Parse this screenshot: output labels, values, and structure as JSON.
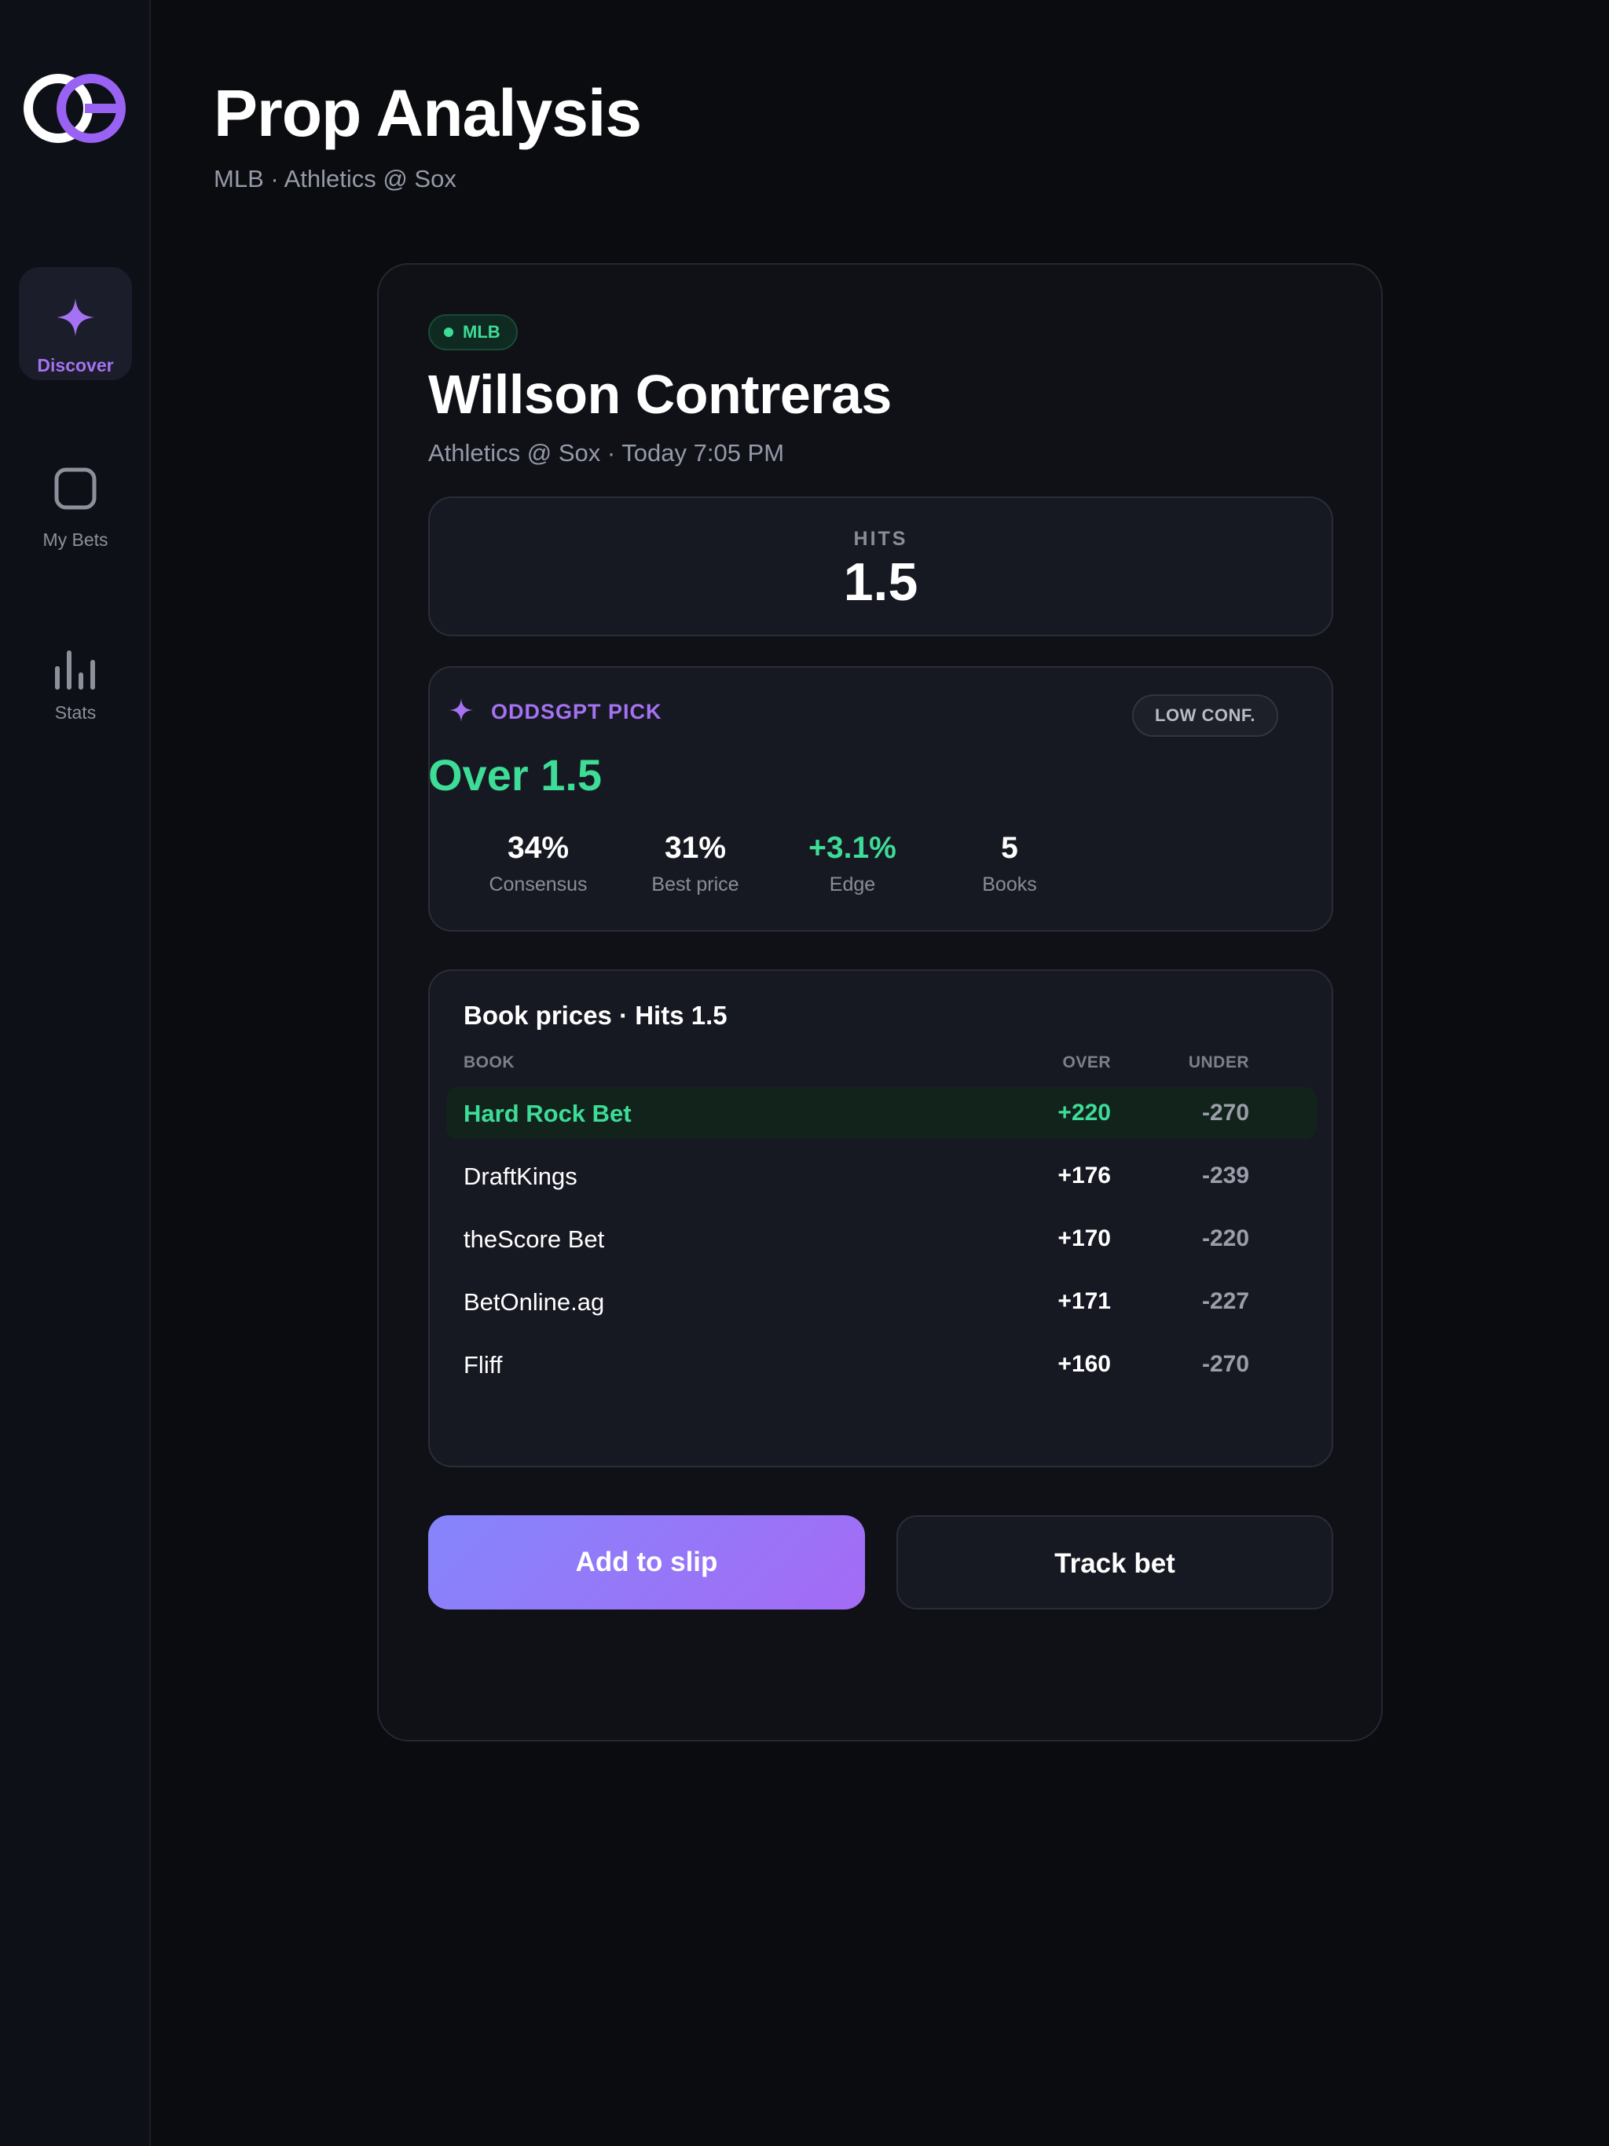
{
  "sidebar": {
    "items": [
      {
        "label": "Discover",
        "icon": "sparkle-icon",
        "active": true
      },
      {
        "label": "My Bets",
        "icon": "square-icon",
        "active": false
      },
      {
        "label": "Stats",
        "icon": "bar-chart-icon",
        "active": false
      }
    ]
  },
  "header": {
    "title": "Prop Analysis",
    "subtitle": "MLB · Athletics @ Sox"
  },
  "card": {
    "sport_badge": "MLB",
    "player": "Willson Contreras",
    "matchup": "Athletics @ Sox · Today 7:05 PM",
    "line": {
      "label": "HITS",
      "value": "1.5"
    },
    "pick": {
      "label": "ODDSGPT PICK",
      "confidence": "LOW CONF.",
      "value": "Over 1.5",
      "stats": [
        {
          "value": "34%",
          "label": "Consensus"
        },
        {
          "value": "31%",
          "label": "Best price"
        },
        {
          "value": "+3.1%",
          "label": "Edge"
        },
        {
          "value": "5",
          "label": "Books"
        }
      ]
    },
    "prices": {
      "title": "Book prices · Hits 1.5",
      "columns": [
        "BOOK",
        "OVER",
        "UNDER"
      ],
      "rows": [
        {
          "book": "Hard Rock Bet",
          "over": "+220",
          "under": "-270",
          "best": true
        },
        {
          "book": "DraftKings",
          "over": "+176",
          "under": "-239",
          "best": false
        },
        {
          "book": "theScore Bet",
          "over": "+170",
          "under": "-220",
          "best": false
        },
        {
          "book": "BetOnline.ag",
          "over": "+171",
          "under": "-227",
          "best": false
        },
        {
          "book": "Fliff",
          "over": "+160",
          "under": "-270",
          "best": false
        }
      ]
    },
    "actions": {
      "primary": "Add to slip",
      "secondary": "Track bet"
    }
  },
  "colors": {
    "accent_purple": "#a472f2",
    "accent_green": "#3ddc97",
    "background": "#0b0c10"
  }
}
